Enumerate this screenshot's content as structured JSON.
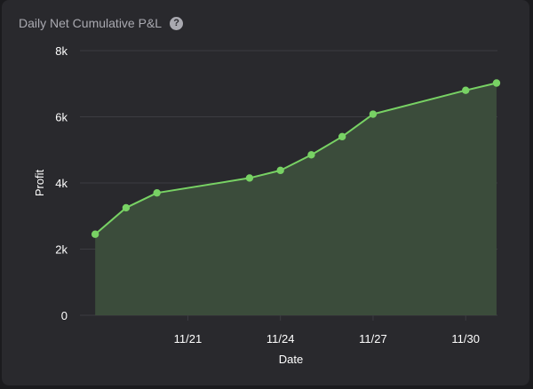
{
  "header": {
    "title": "Daily Net Cumulative P&L",
    "help_icon": "help-circle-icon"
  },
  "colors": {
    "background": "#29292d",
    "line": "#78d264",
    "area_fill": "#3b4c3b",
    "grid": "#3c3c41",
    "text": "#ffffff",
    "muted_text": "#a9a9b0"
  },
  "chart_data": {
    "type": "area",
    "xlabel": "Date",
    "ylabel": "Profit",
    "ylim": [
      0,
      8000
    ],
    "y_ticks": [
      0,
      2000,
      4000,
      6000,
      8000
    ],
    "y_tick_labels": [
      "0",
      "2k",
      "4k",
      "6k",
      "8k"
    ],
    "x_ticks": [
      "2023-11-21",
      "2023-11-24",
      "2023-11-27",
      "2023-11-30"
    ],
    "x_tick_labels": [
      "11/21",
      "11/24",
      "11/27",
      "11/30"
    ],
    "grid": "horizontal",
    "series": [
      {
        "x": [
          "2023-11-18",
          "2023-11-19",
          "2023-11-20",
          "2023-11-23",
          "2023-11-24",
          "2023-11-25",
          "2023-11-26",
          "2023-11-27",
          "2023-11-30",
          "2023-12-01"
        ],
        "y": [
          2450,
          3250,
          3700,
          4150,
          4380,
          4850,
          5400,
          6080,
          6800,
          7020
        ]
      }
    ]
  }
}
